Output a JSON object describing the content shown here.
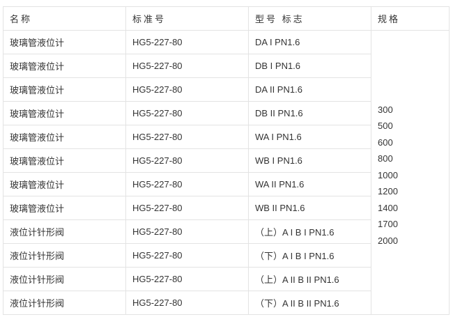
{
  "headers": [
    "名称",
    "标准号",
    "型号 标志",
    "规格"
  ],
  "rows": [
    {
      "name": "玻璃管液位计",
      "standard": "HG5-227-80",
      "model": "DA I PN1.6"
    },
    {
      "name": "玻璃管液位计",
      "standard": "HG5-227-80",
      "model": "DB I PN1.6"
    },
    {
      "name": "玻璃管液位计",
      "standard": "HG5-227-80",
      "model": "DA II PN1.6"
    },
    {
      "name": "玻璃管液位计",
      "standard": "HG5-227-80",
      "model": "DB II PN1.6"
    },
    {
      "name": "玻璃管液位计",
      "standard": "HG5-227-80",
      "model": "WA I PN1.6"
    },
    {
      "name": "玻璃管液位计",
      "standard": "HG5-227-80",
      "model": "WB I PN1.6"
    },
    {
      "name": "玻璃管液位计",
      "standard": "HG5-227-80",
      "model": "WA II PN1.6"
    },
    {
      "name": "玻璃管液位计",
      "standard": "HG5-227-80",
      "model": "WB II PN1.6"
    },
    {
      "name": "液位计针形阀",
      "standard": "HG5-227-80",
      "model": "（上）A I B I PN1.6"
    },
    {
      "name": "液位计针形阀",
      "standard": "HG5-227-80",
      "model": "（下）A I B I PN1.6"
    },
    {
      "name": "液位计针形阀",
      "standard": "HG5-227-80",
      "model": "（上）A II B II PN1.6"
    },
    {
      "name": "液位计针形阀",
      "standard": "HG5-227-80",
      "model": "（下）A II B II PN1.6"
    }
  ],
  "specs": [
    "300",
    "500",
    "600",
    "800",
    "1000",
    "1200",
    "1400",
    "1700",
    "2000"
  ]
}
